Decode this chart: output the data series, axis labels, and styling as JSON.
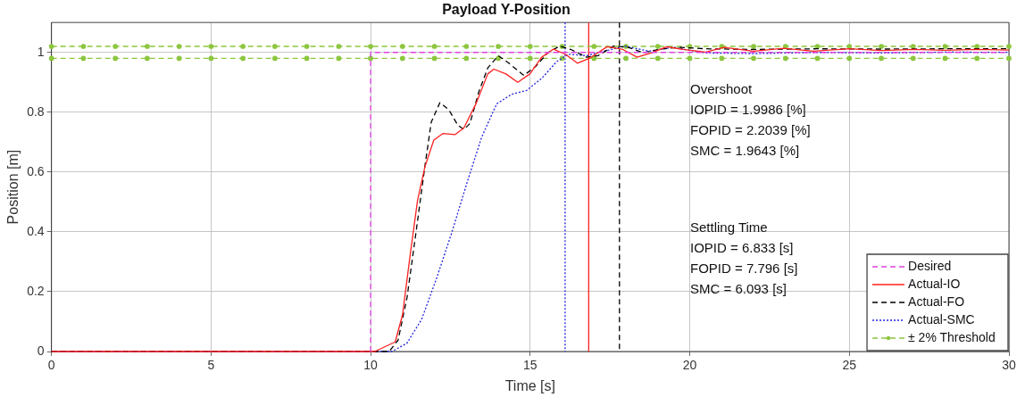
{
  "chart_data": {
    "type": "line",
    "title": "Payload Y-Position",
    "xlabel": "Time [s]",
    "ylabel": "Position [m]",
    "xlim": [
      0,
      30
    ],
    "xticks": [
      0,
      5,
      10,
      15,
      20,
      25,
      30
    ],
    "ylim": [
      0,
      1.1
    ],
    "yticks": [
      0,
      0.2,
      0.4,
      0.6,
      0.8,
      1
    ],
    "grid": true,
    "legend": "bottom right",
    "marker": "none",
    "series": [
      {
        "name": "Desired",
        "color": "#e040e0",
        "line_style": "dashed",
        "x": [
          10,
          10,
          30
        ],
        "values": [
          0,
          1,
          1
        ]
      },
      {
        "name": "Actual-IO",
        "color": "#ff2020",
        "line_style": "solid",
        "x": [
          0,
          10.13,
          10.77,
          11.0,
          11.24,
          11.47,
          11.7,
          11.98,
          12.27,
          12.64,
          12.92,
          13.3,
          13.67,
          13.86,
          14.24,
          14.61,
          14.99,
          15.36,
          15.73,
          16.1,
          16.48,
          16.85,
          17.41,
          17.88,
          18.35,
          18.81,
          19.28,
          19.84,
          20.5,
          21.07,
          22.0,
          22.94,
          23.88,
          25,
          26,
          27,
          28,
          29,
          30
        ],
        "values": [
          0,
          0,
          0.032,
          0.123,
          0.324,
          0.505,
          0.617,
          0.707,
          0.729,
          0.725,
          0.747,
          0.828,
          0.928,
          0.944,
          0.928,
          0.9,
          0.928,
          0.984,
          1.011,
          0.994,
          0.964,
          0.98,
          1.019,
          1.011,
          0.984,
          0.999,
          1.019,
          1.009,
          1.001,
          1.017,
          1.004,
          1.014,
          1.004,
          1.012,
          1.006,
          1.01,
          1.007,
          1.01,
          1.008
        ]
      },
      {
        "name": "Actual-FO",
        "color": "#000000",
        "line_style": "dashed",
        "x": [
          0,
          10.58,
          10.86,
          11.14,
          11.43,
          11.71,
          11.9,
          12.17,
          12.45,
          12.73,
          12.92,
          13.11,
          13.39,
          13.67,
          14.0,
          14.33,
          14.8,
          15.17,
          15.55,
          15.92,
          16.29,
          16.76,
          17.13,
          17.6,
          18.07,
          18.54,
          19.1,
          19.66,
          20.5,
          22,
          24,
          26,
          28,
          30
        ],
        "values": [
          0,
          0,
          0.038,
          0.18,
          0.405,
          0.627,
          0.767,
          0.832,
          0.808,
          0.757,
          0.742,
          0.762,
          0.868,
          0.948,
          0.989,
          0.964,
          0.923,
          0.953,
          0.999,
          1.021,
          1.009,
          0.984,
          0.989,
          1.021,
          1.017,
          0.999,
          1.011,
          1.017,
          1.012,
          1.01,
          1.012,
          1.011,
          1.012,
          1.012
        ]
      },
      {
        "name": "Actual-SMC",
        "color": "#2020e0",
        "line_style": "dotted",
        "x": [
          0,
          10.67,
          11.14,
          11.6,
          12.08,
          12.55,
          13.01,
          13.48,
          13.95,
          14.42,
          14.89,
          15.36,
          15.83,
          16.2,
          16.76,
          17.32,
          17.97,
          18.72,
          19.47,
          20.5,
          22,
          24,
          26,
          28,
          30
        ],
        "values": [
          0,
          0,
          0.028,
          0.108,
          0.249,
          0.4,
          0.561,
          0.717,
          0.828,
          0.86,
          0.873,
          0.913,
          0.969,
          0.994,
          0.989,
          1.004,
          1.021,
          1.004,
          1.017,
          0.998,
          0.996,
          1.0,
          0.998,
          1.001,
          1.0
        ]
      },
      {
        "name": "± 2% Threshold",
        "color": "#8cc63f",
        "line_style": "dashed",
        "marker": "circle",
        "x": [
          0,
          1,
          2,
          3,
          4,
          5,
          6,
          7,
          8,
          9,
          10,
          11,
          12,
          13,
          14,
          15,
          16,
          17,
          18,
          19,
          20,
          21,
          22,
          23,
          24,
          25,
          26,
          27,
          28,
          29,
          30
        ],
        "values": [
          1.02,
          1.02,
          1.02,
          1.02,
          1.02,
          1.02,
          1.02,
          1.02,
          1.02,
          1.02,
          1.02,
          1.02,
          1.02,
          1.02,
          1.02,
          1.02,
          1.02,
          1.02,
          1.02,
          1.02,
          1.02,
          1.02,
          1.02,
          1.02,
          1.02,
          1.02,
          1.02,
          1.02,
          1.02,
          1.02,
          1.02
        ]
      },
      {
        "color": "#8cc63f",
        "line_style": "dashed",
        "marker": "circle",
        "x": [
          0,
          1,
          2,
          3,
          4,
          5,
          6,
          7,
          8,
          9,
          10,
          11,
          12,
          13,
          14,
          15,
          16,
          17,
          18,
          19,
          20,
          21,
          22,
          23,
          24,
          25,
          26,
          27,
          28,
          29,
          30
        ],
        "values": [
          0.98,
          0.98,
          0.98,
          0.98,
          0.98,
          0.98,
          0.98,
          0.98,
          0.98,
          0.98,
          0.98,
          0.98,
          0.98,
          0.98,
          0.98,
          0.98,
          0.98,
          0.98,
          0.98,
          0.98,
          0.98,
          0.98,
          0.98,
          0.98,
          0.98,
          0.98,
          0.98,
          0.98,
          0.98,
          0.98,
          0.98
        ]
      }
    ],
    "ref_lines": [
      {
        "axis": "x",
        "value": 16.093,
        "color": "#2020e0",
        "line_style": "dotted"
      },
      {
        "axis": "x",
        "value": 16.833,
        "color": "#ff2020",
        "line_style": "solid"
      },
      {
        "axis": "x",
        "value": 17.796,
        "color": "#000000",
        "line_style": "dashed"
      }
    ],
    "annotations": [
      "Overshoot",
      "IOPID = 1.9986 [%]",
      "FOPID = 2.2039 [%]",
      "SMC = 1.9643 [%]",
      "Settling Time",
      "IOPID = 6.833 [s]",
      "FOPID = 7.796 [s]",
      "SMC = 6.093 [s]"
    ]
  }
}
